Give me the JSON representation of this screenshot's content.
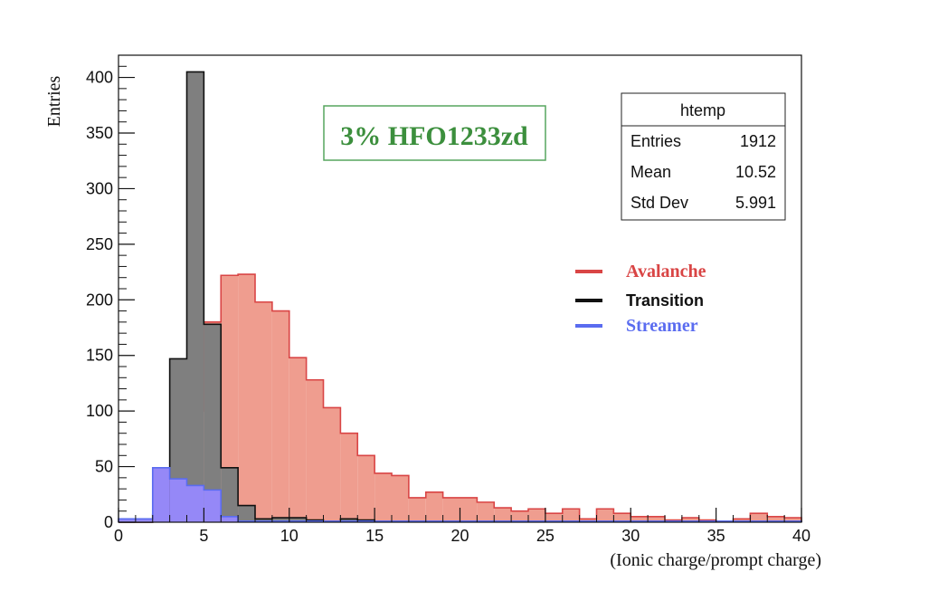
{
  "chart_data": {
    "type": "histogram",
    "title": "",
    "xlabel": "(Ionic charge/prompt charge)",
    "ylabel": "Entries",
    "xlim": [
      0,
      40
    ],
    "ylim": [
      0,
      420
    ],
    "bin_width": 1,
    "x_ticks": [
      0,
      5,
      10,
      15,
      20,
      25,
      30,
      35,
      40
    ],
    "y_ticks": [
      0,
      50,
      100,
      150,
      200,
      250,
      300,
      350,
      400
    ],
    "x_tick_labels": [
      "0",
      "5",
      "10",
      "15",
      "20",
      "25",
      "30",
      "35",
      "40"
    ],
    "y_tick_labels": [
      "0",
      "50",
      "100",
      "150",
      "200",
      "250",
      "300",
      "350",
      "400"
    ],
    "grid": false,
    "annotation": "3% HFO1233zd",
    "legend_position": "right",
    "stats_box": {
      "title": "htemp",
      "rows": [
        {
          "label": "Entries",
          "value": "1912"
        },
        {
          "label": "Mean",
          "value": "10.52"
        },
        {
          "label": "Std Dev",
          "value": "5.991"
        }
      ]
    },
    "series": [
      {
        "name": "Avalanche",
        "color": "#d94545",
        "fill": "#ef9d8f",
        "values": [
          0,
          0,
          2,
          2,
          100,
          180,
          222,
          223,
          198,
          190,
          148,
          128,
          103,
          80,
          60,
          44,
          42,
          22,
          27,
          22,
          22,
          18,
          13,
          10,
          12,
          8,
          12,
          3,
          12,
          8,
          5,
          5,
          2,
          4,
          2,
          1,
          3,
          8,
          5,
          4
        ]
      },
      {
        "name": "Transition",
        "color": "#111111",
        "fill": "#7f7f7f",
        "values": [
          0,
          0,
          7,
          147,
          405,
          178,
          49,
          15,
          3,
          4,
          4,
          2,
          1,
          3,
          2,
          1,
          1,
          1,
          1,
          1,
          1,
          1,
          1,
          1,
          1,
          1,
          1,
          1,
          1,
          1,
          1,
          1,
          1,
          1,
          1,
          1,
          1,
          1,
          1,
          1
        ]
      },
      {
        "name": "Streamer",
        "color": "#5a6cf0",
        "fill": "#9588f7",
        "values": [
          3,
          3,
          49,
          39,
          33,
          29,
          5,
          1,
          1,
          1,
          1,
          1,
          1,
          1,
          1,
          1,
          1,
          1,
          1,
          1,
          1,
          1,
          1,
          1,
          1,
          1,
          1,
          1,
          1,
          1,
          1,
          1,
          1,
          1,
          1,
          1,
          1,
          1,
          1,
          1
        ]
      }
    ]
  }
}
